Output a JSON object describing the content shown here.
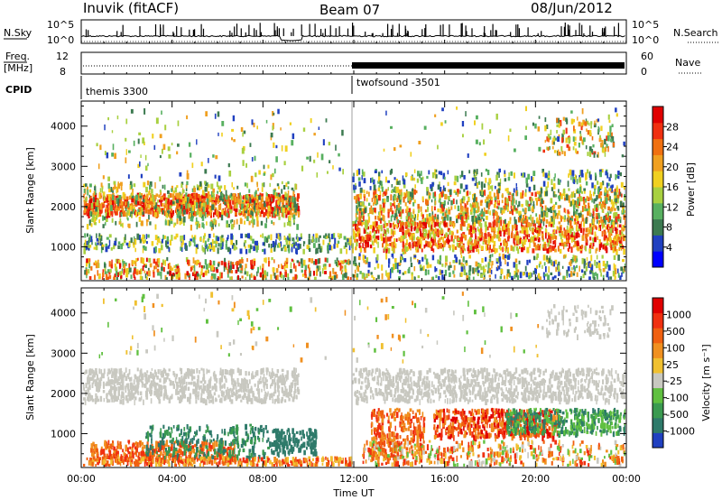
{
  "header": {
    "station": "Inuvik (fitACF)",
    "beam": "Beam 07",
    "date": "08/Jun/2012"
  },
  "chart_data": [
    {
      "type": "line",
      "name": "noise-panel",
      "left_label": "N.Sky",
      "right_label": "N.Search",
      "left_ticks": [
        "10^5",
        "10^0"
      ],
      "right_ticks": [
        "10^5",
        "10^0"
      ],
      "left_scale": "log"
    },
    {
      "type": "line",
      "name": "freq-panel",
      "left_label_lines": [
        "Freq.",
        "[MHz]"
      ],
      "left_ticks": [
        "12",
        "8"
      ],
      "right_ticks": [
        "60",
        "0"
      ],
      "right_label": "Nave",
      "cpid_label": "CPID",
      "programs": [
        {
          "name": "themis 3300",
          "start": "00:00"
        },
        {
          "name": "twofsound -3501",
          "start": "12:00"
        }
      ]
    },
    {
      "type": "heatmap",
      "name": "power-panel",
      "ylabel": "Slant Range [km]",
      "yticks": [
        1000,
        2000,
        3000,
        4000
      ],
      "ylim": [
        180,
        4600
      ],
      "colorbar_label": "Power [dB]",
      "colorbar_ticks": [
        "28",
        "24",
        "20",
        "16",
        "12",
        "8",
        "4"
      ],
      "colors": [
        "#0000ff",
        "#2040c0",
        "#3c7a50",
        "#58b060",
        "#a8d040",
        "#f0d020",
        "#f0a020",
        "#f07010",
        "#f03010",
        "#e00000"
      ]
    },
    {
      "type": "heatmap",
      "name": "velocity-panel",
      "ylabel": "Slant Range [km]",
      "yticks": [
        1000,
        2000,
        3000,
        4000
      ],
      "ylim": [
        180,
        4600
      ],
      "colorbar_label": "Velocity  [m s⁻¹]",
      "colorbar_ticks": [
        "1000",
        "500",
        "100",
        "25",
        "-25",
        "-100",
        "-500",
        "-1000"
      ],
      "colors": [
        "#2040c0",
        "#2e7a6a",
        "#3a9a50",
        "#60c040",
        "#c8c8c0",
        "#f0c030",
        "#f09020",
        "#f06010",
        "#f03010",
        "#e00000"
      ]
    }
  ],
  "xaxis": {
    "label": "Time UT",
    "ticks": [
      "00:00",
      "04:00",
      "08:00",
      "12:00",
      "16:00",
      "20:00",
      "00:00"
    ]
  }
}
